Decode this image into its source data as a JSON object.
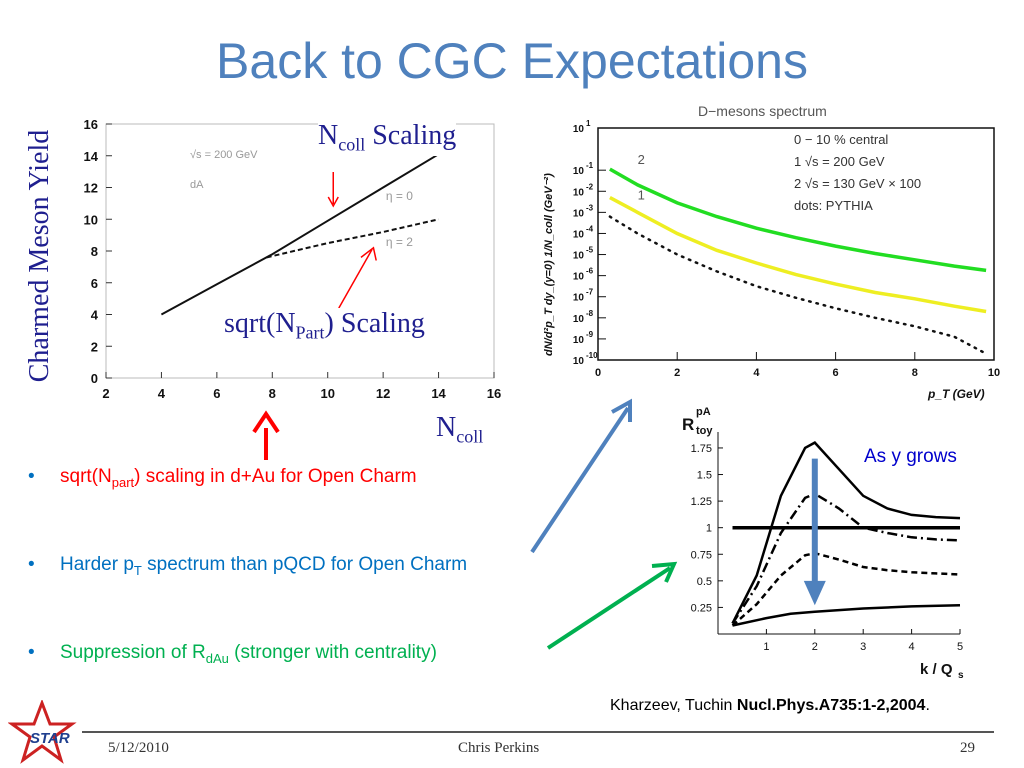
{
  "slide": {
    "title": "Back to CGC Expectations",
    "footer": {
      "date": "5/12/2010",
      "author": "Chris Perkins",
      "page": "29"
    },
    "logo_text": "STAR",
    "citation": {
      "authors": "Kharzeev, Tuchin ",
      "journal": "Nucl.Phys.A735:1-2,2004",
      "end": "."
    },
    "bullets": [
      {
        "pre": "sqrt(N",
        "sub": "part",
        "post": ") scaling in d+Au for Open Charm",
        "color": "#ff0000"
      },
      {
        "pre": "Harder p",
        "sub": "T",
        "post": " spectrum than pQCD for Open Charm",
        "color": "#0070c0"
      },
      {
        "pre": "Suppression of R",
        "sub": "dAu",
        "post": " (stronger with centrality)",
        "color": "#00b050"
      }
    ],
    "colors": {
      "title": "#4f81bd",
      "ncoll_arrow": "#ff0000",
      "blue_arrow": "#4f81bd",
      "green_arrow": "#00b050"
    }
  },
  "chart_data": [
    {
      "type": "line",
      "ylabel": "Charmed Meson Yield",
      "xlabel_main": "N",
      "xlabel_sub": "coll",
      "xlim": [
        2,
        16
      ],
      "ylim": [
        0,
        16
      ],
      "xticks": [
        2,
        4,
        6,
        8,
        10,
        12,
        14,
        16
      ],
      "yticks": [
        0,
        2,
        4,
        6,
        8,
        10,
        12,
        14,
        16
      ],
      "inset_labels": [
        "√s = 200 GeV",
        "dA"
      ],
      "series": [
        {
          "name": "η = 0",
          "style": "solid",
          "x": [
            4,
            6,
            8,
            10,
            12,
            14
          ],
          "y": [
            4,
            5.9,
            7.8,
            9.9,
            12,
            14.1
          ]
        },
        {
          "name": "η = 2",
          "style": "dashed",
          "x": [
            7.8,
            10,
            12,
            14
          ],
          "y": [
            7.6,
            8.5,
            9.2,
            10
          ]
        }
      ],
      "annotations": [
        {
          "pre": "N",
          "sub": "coll",
          "post": " Scaling"
        },
        {
          "pre": "sqrt(N",
          "sub": "Part",
          "post": ") Scaling"
        }
      ]
    },
    {
      "type": "line",
      "title": "D−mesons spectrum",
      "ylabel": "dN/d²p_T dy_(y=0)  1/N_coll  (GeV⁻²)",
      "xlabel": "p_T (GeV)",
      "xlim": [
        0,
        10
      ],
      "ylog_exponents": [
        1,
        -1,
        -2,
        -3,
        -4,
        -5,
        -6,
        -7,
        -8,
        -9,
        -10
      ],
      "xticks": [
        0,
        2,
        4,
        6,
        8,
        10
      ],
      "legend": [
        "0 − 10 % central",
        "1  √s = 200 GeV",
        "2  √s = 130 GeV  × 100",
        "dots: PYTHIA"
      ],
      "series": [
        {
          "name": "2",
          "color": "#22dd22",
          "x": [
            0.3,
            1,
            2,
            3,
            4,
            5,
            6,
            7,
            8,
            9,
            9.8
          ],
          "y": [
            -0.95,
            -1.7,
            -2.55,
            -3.2,
            -3.75,
            -4.2,
            -4.6,
            -4.95,
            -5.25,
            -5.55,
            -5.75
          ]
        },
        {
          "name": "1",
          "color": "#eeee22",
          "x": [
            0.3,
            1,
            2,
            3,
            4,
            5,
            6,
            7,
            8,
            9,
            9.8
          ],
          "y": [
            -2.3,
            -3.0,
            -4.0,
            -4.8,
            -5.4,
            -5.95,
            -6.4,
            -6.8,
            -7.1,
            -7.45,
            -7.7
          ]
        },
        {
          "name": "PYTHIA",
          "style": "dotted",
          "color": "#111111",
          "x": [
            0.3,
            1,
            2,
            3,
            4,
            5,
            6,
            7,
            8,
            9,
            9.8
          ],
          "y": [
            -3.2,
            -4.0,
            -5.0,
            -5.8,
            -6.5,
            -7.05,
            -7.55,
            -8.0,
            -8.4,
            -8.9,
            -9.7
          ]
        }
      ]
    },
    {
      "type": "line",
      "ylabel_main": "R",
      "ylabel_sup": "pA",
      "ylabel_sub": "toy",
      "xlabel": "k / Q",
      "xlabel_sub": "s",
      "xlim": [
        0,
        5
      ],
      "ylim": [
        0,
        1.9
      ],
      "xticks": [
        1,
        2,
        3,
        4,
        5
      ],
      "yticks": [
        0.25,
        0.5,
        0.75,
        1,
        1.25,
        1.5,
        1.75
      ],
      "annotation": "As y grows",
      "series": [
        {
          "style": "solid",
          "x": [
            0.3,
            0.8,
            1.3,
            1.8,
            2.0,
            2.5,
            3,
            3.5,
            4,
            4.5,
            5
          ],
          "y": [
            0.1,
            0.55,
            1.3,
            1.75,
            1.8,
            1.55,
            1.3,
            1.18,
            1.12,
            1.1,
            1.09
          ]
        },
        {
          "style": "dashdot",
          "x": [
            0.3,
            0.8,
            1.3,
            1.8,
            2.0,
            2.5,
            3,
            3.5,
            4,
            4.5,
            5
          ],
          "y": [
            0.1,
            0.45,
            0.95,
            1.28,
            1.32,
            1.18,
            1.0,
            0.95,
            0.91,
            0.89,
            0.88
          ]
        },
        {
          "style": "dashed",
          "x": [
            0.3,
            0.8,
            1.3,
            1.8,
            2.0,
            2.5,
            3,
            3.5,
            4,
            4.5,
            5
          ],
          "y": [
            0.08,
            0.28,
            0.55,
            0.74,
            0.76,
            0.7,
            0.63,
            0.6,
            0.58,
            0.57,
            0.56
          ]
        },
        {
          "style": "solid",
          "x": [
            0.3,
            1,
            1.5,
            2,
            3,
            4,
            5
          ],
          "y": [
            0.08,
            0.15,
            0.19,
            0.21,
            0.24,
            0.26,
            0.27
          ]
        },
        {
          "style": "flat",
          "x": [
            0.3,
            5
          ],
          "y": [
            1,
            1
          ]
        }
      ]
    }
  ]
}
